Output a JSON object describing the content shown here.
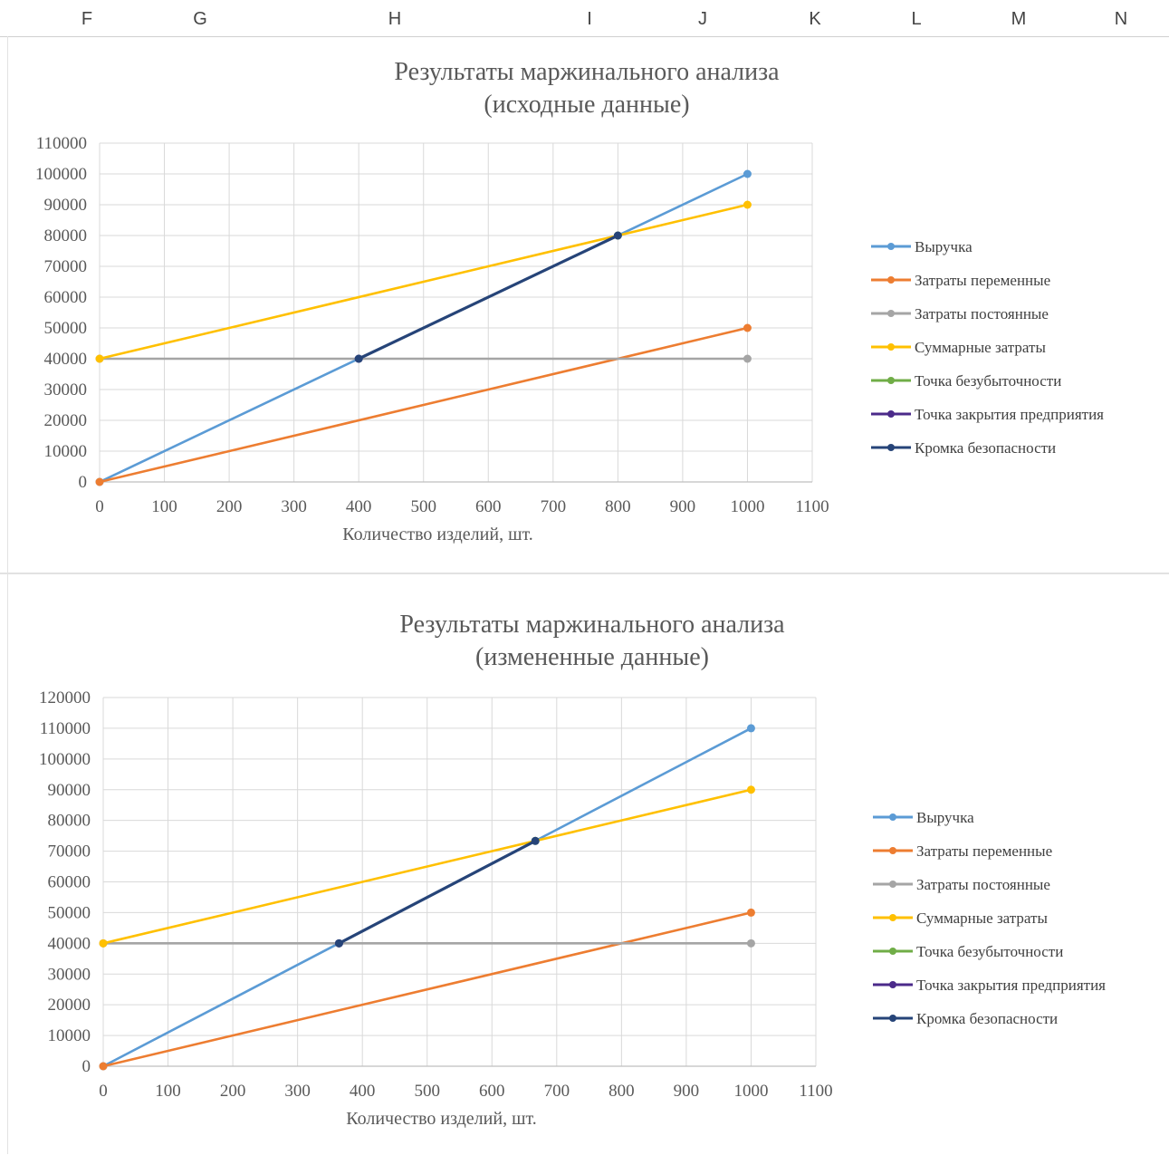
{
  "columns": [
    "F",
    "G",
    "H",
    "I",
    "J",
    "K",
    "L",
    "M",
    "N"
  ],
  "colors": {
    "revenue": "#5b9bd5",
    "variable_costs": "#ed7d31",
    "fixed_costs": "#a5a5a5",
    "total_costs": "#ffc000",
    "breakeven": "#70ad47",
    "shutdown": "#4b2a8a",
    "safety_margin": "#264478"
  },
  "chart_data": [
    {
      "type": "line",
      "title_line1": "Результаты маржинального анализа",
      "title_line2": "(исходные данные)",
      "xlabel": "Количество изделий, шт.",
      "ylabel": "",
      "xlim": [
        0,
        1100
      ],
      "ylim": [
        0,
        110000
      ],
      "x_ticks": [
        0,
        100,
        200,
        300,
        400,
        500,
        600,
        700,
        800,
        900,
        1000,
        1100
      ],
      "y_ticks": [
        0,
        10000,
        20000,
        30000,
        40000,
        50000,
        60000,
        70000,
        80000,
        90000,
        100000,
        110000
      ],
      "grid": true,
      "legend": "right",
      "series": [
        {
          "name": "Выручка",
          "color_key": "revenue",
          "x": [
            0,
            1000
          ],
          "y": [
            0,
            100000
          ]
        },
        {
          "name": "Затраты переменные",
          "color_key": "variable_costs",
          "x": [
            0,
            1000
          ],
          "y": [
            0,
            50000
          ]
        },
        {
          "name": "Затраты постоянные",
          "color_key": "fixed_costs",
          "x": [
            0,
            1000
          ],
          "y": [
            40000,
            40000
          ]
        },
        {
          "name": "Суммарные затраты",
          "color_key": "total_costs",
          "x": [
            0,
            1000
          ],
          "y": [
            40000,
            90000
          ]
        },
        {
          "name": "Точка безубыточности",
          "color_key": "breakeven",
          "x": [
            800
          ],
          "y": [
            80000
          ]
        },
        {
          "name": "Точка закрытия предприятия",
          "color_key": "shutdown",
          "x": [
            400
          ],
          "y": [
            40000
          ]
        },
        {
          "name": "Кромка безопасности",
          "color_key": "safety_margin",
          "x": [
            400,
            800
          ],
          "y": [
            40000,
            80000
          ]
        }
      ]
    },
    {
      "type": "line",
      "title_line1": "Результаты маржинального анализа",
      "title_line2": "(измененные данные)",
      "xlabel": "Количество изделий, шт.",
      "ylabel": "",
      "xlim": [
        0,
        1100
      ],
      "ylim": [
        0,
        120000
      ],
      "x_ticks": [
        0,
        100,
        200,
        300,
        400,
        500,
        600,
        700,
        800,
        900,
        1000,
        1100
      ],
      "y_ticks": [
        0,
        10000,
        20000,
        30000,
        40000,
        50000,
        60000,
        70000,
        80000,
        90000,
        100000,
        110000,
        120000
      ],
      "grid": true,
      "legend": "right",
      "series": [
        {
          "name": "Выручка",
          "color_key": "revenue",
          "x": [
            0,
            1000
          ],
          "y": [
            0,
            110000
          ]
        },
        {
          "name": "Затраты переменные",
          "color_key": "variable_costs",
          "x": [
            0,
            1000
          ],
          "y": [
            0,
            50000
          ]
        },
        {
          "name": "Затраты постоянные",
          "color_key": "fixed_costs",
          "x": [
            0,
            1000
          ],
          "y": [
            40000,
            40000
          ]
        },
        {
          "name": "Суммарные затраты",
          "color_key": "total_costs",
          "x": [
            0,
            1000
          ],
          "y": [
            40000,
            90000
          ]
        },
        {
          "name": "Точка безубыточности",
          "color_key": "breakeven",
          "x": [
            667
          ],
          "y": [
            73333
          ]
        },
        {
          "name": "Точка закрытия предприятия",
          "color_key": "shutdown",
          "x": [
            364
          ],
          "y": [
            40000
          ]
        },
        {
          "name": "Кромка безопасности",
          "color_key": "safety_margin",
          "x": [
            364,
            667
          ],
          "y": [
            40000,
            73333
          ]
        }
      ]
    }
  ]
}
